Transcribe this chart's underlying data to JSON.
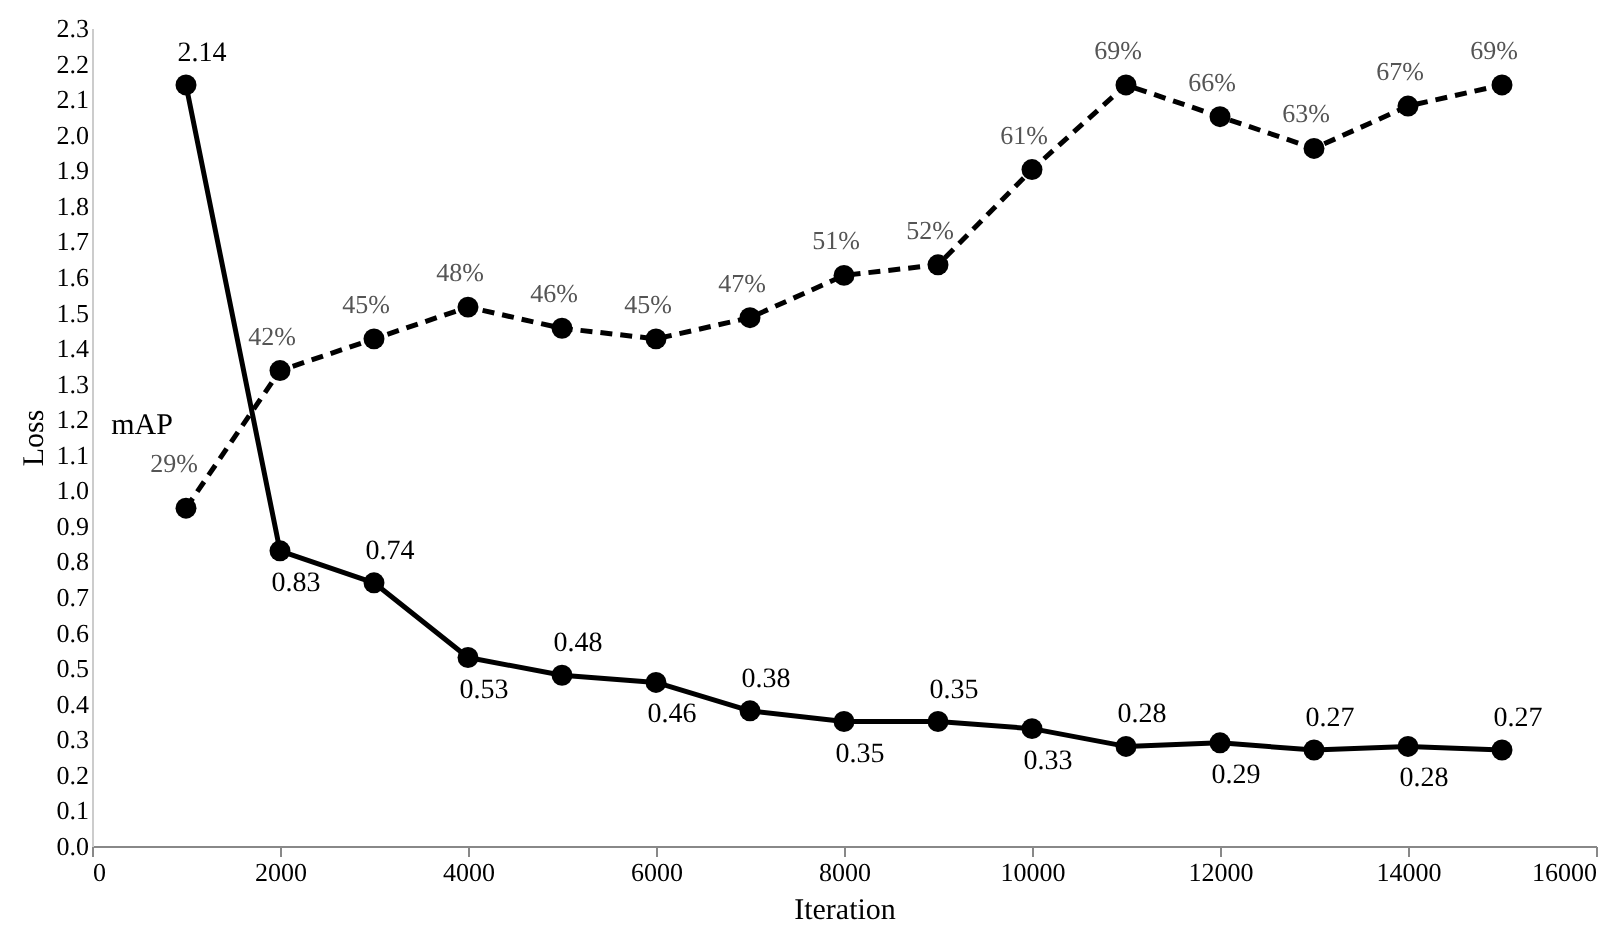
{
  "chart_data": {
    "type": "line",
    "xlabel": "Iteration",
    "ylabel": "Loss",
    "x": [
      1000,
      2000,
      3000,
      4000,
      5000,
      6000,
      7000,
      8000,
      9000,
      10000,
      11000,
      12000,
      13000,
      14000,
      15000
    ],
    "series": [
      {
        "color": "#000000",
        "line_style": "solid",
        "values": [
          2.14,
          0.83,
          0.74,
          0.53,
          0.48,
          0.46,
          0.38,
          0.35,
          0.35,
          0.33,
          0.28,
          0.29,
          0.27,
          0.28,
          0.27
        ],
        "value_labels": [
          "2.14",
          "0.83",
          "0.74",
          "0.53",
          "0.48",
          "0.46",
          "0.38",
          "0.35",
          "0.35",
          "0.33",
          "0.28",
          "0.29",
          "0.27",
          "0.28",
          "0.27"
        ]
      },
      {
        "name": "mAP",
        "color": "#000000",
        "line_style": "dashed",
        "axis": "y2",
        "values": [
          29,
          42,
          45,
          48,
          46,
          45,
          47,
          51,
          52,
          61,
          69,
          66,
          63,
          67,
          69
        ],
        "value_labels": [
          "29%",
          "42%",
          "45%",
          "48%",
          "46%",
          "45%",
          "47%",
          "51%",
          "52%",
          "61%",
          "69%",
          "66%",
          "63%",
          "67%",
          "69%"
        ]
      }
    ],
    "xlim": [
      0,
      16000
    ],
    "xticks": [
      0,
      2000,
      4000,
      6000,
      8000,
      10000,
      12000,
      14000,
      16000
    ],
    "ylim": [
      0,
      2.3
    ],
    "yticks": [
      {
        "value": 0,
        "label": "0.0"
      },
      0.1,
      0.2,
      0.3,
      0.4,
      0.5,
      0.6,
      0.7,
      0.8,
      0.9,
      {
        "value": 1,
        "label": "1.0"
      },
      1.1,
      1.2,
      1.3,
      1.4,
      1.5,
      1.6,
      1.7,
      1.8,
      1.9,
      {
        "value": 2,
        "label": "2.0"
      },
      2.1,
      2.2,
      2.3
    ],
    "y2lim": [
      -2.93,
      74.38
    ],
    "grid": false,
    "marker": "circle"
  }
}
